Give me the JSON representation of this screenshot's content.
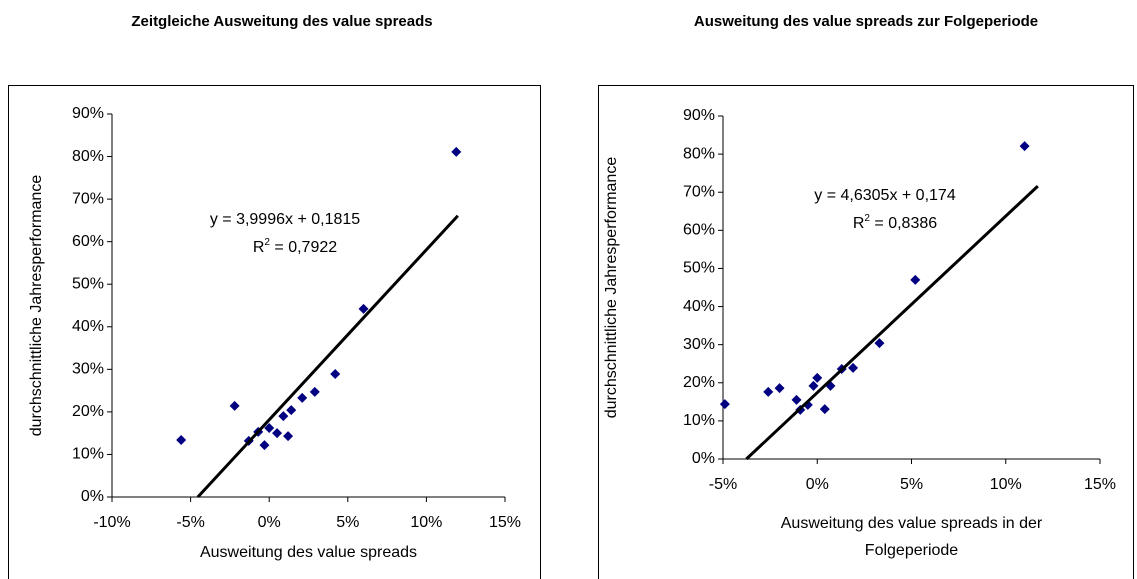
{
  "chart_data": [
    {
      "type": "scatter",
      "title": "Zeitgleiche Ausweitung des value spreads",
      "xlabel": [
        "Ausweitung des value spreads"
      ],
      "ylabel": "durchschnittliche Jahresperformance",
      "color": "#000080",
      "xlim": [
        -10,
        15
      ],
      "ylim": [
        0,
        90
      ],
      "xticks": [
        {
          "value": -10,
          "label": "-10%"
        },
        {
          "value": -5,
          "label": "-5%"
        },
        {
          "value": 0,
          "label": "0%"
        },
        {
          "value": 5,
          "label": "5%"
        },
        {
          "value": 10,
          "label": "10%"
        },
        {
          "value": 15,
          "label": "15%"
        }
      ],
      "yticks": [
        {
          "value": 0,
          "label": "0%"
        },
        {
          "value": 10,
          "label": "10%"
        },
        {
          "value": 20,
          "label": "20%"
        },
        {
          "value": 30,
          "label": "30%"
        },
        {
          "value": 40,
          "label": "40%"
        },
        {
          "value": 50,
          "label": "50%"
        },
        {
          "value": 60,
          "label": "60%"
        },
        {
          "value": 70,
          "label": "70%"
        },
        {
          "value": 80,
          "label": "80%"
        },
        {
          "value": 90,
          "label": "90%"
        }
      ],
      "x": [
        -5.6,
        -2.2,
        -1.3,
        -0.7,
        -0.3,
        0.0,
        0.5,
        0.9,
        1.2,
        1.4,
        2.1,
        2.9,
        4.2,
        6.0,
        11.9
      ],
      "values": [
        13.4,
        21.4,
        13.2,
        15.3,
        12.2,
        16.2,
        15.0,
        19.0,
        14.3,
        20.4,
        23.3,
        24.7,
        28.9,
        44.2,
        81.1
      ],
      "trendline": {
        "x": [
          -4.54,
          12.0
        ],
        "y": [
          0,
          66.1
        ],
        "color": "#000000",
        "equation": "y = 3,9996x + 0,1815",
        "r_squared": {
          "symbol": "R",
          "sup": "2",
          "text": " = 0,7922"
        }
      }
    },
    {
      "type": "scatter",
      "title": "Ausweitung des value spreads zur Folgeperiode",
      "xlabel": [
        "Ausweitung des value spreads in der",
        "Folgeperiode"
      ],
      "ylabel": "durchschnittliche Jahresperformance",
      "color": "#000080",
      "xlim": [
        -5,
        15
      ],
      "ylim": [
        0,
        90
      ],
      "xticks": [
        {
          "value": -5,
          "label": "-5%"
        },
        {
          "value": 0,
          "label": "0%"
        },
        {
          "value": 5,
          "label": "5%"
        },
        {
          "value": 10,
          "label": "10%"
        },
        {
          "value": 15,
          "label": "15%"
        }
      ],
      "yticks": [
        {
          "value": 0,
          "label": "0%"
        },
        {
          "value": 10,
          "label": "10%"
        },
        {
          "value": 20,
          "label": "20%"
        },
        {
          "value": 30,
          "label": "30%"
        },
        {
          "value": 40,
          "label": "40%"
        },
        {
          "value": 50,
          "label": "50%"
        },
        {
          "value": 60,
          "label": "60%"
        },
        {
          "value": 70,
          "label": "70%"
        },
        {
          "value": 80,
          "label": "80%"
        },
        {
          "value": 90,
          "label": "90%"
        }
      ],
      "x": [
        -4.9,
        -2.6,
        -2.0,
        -1.1,
        -0.9,
        -0.5,
        -0.2,
        0.0,
        0.4,
        0.7,
        1.3,
        1.9,
        3.3,
        5.2,
        11.0
      ],
      "values": [
        14.4,
        17.6,
        18.6,
        15.5,
        12.9,
        14.2,
        19.2,
        21.3,
        13.1,
        19.2,
        23.6,
        23.9,
        30.4,
        47.0,
        82.1
      ],
      "trendline": {
        "x": [
          -3.76,
          11.7
        ],
        "y": [
          0,
          71.6
        ],
        "color": "#000000",
        "equation": "y = 4,6305x + 0,174",
        "r_squared": {
          "symbol": "R",
          "sup": "2",
          "text": " = 0,8386"
        }
      }
    }
  ]
}
